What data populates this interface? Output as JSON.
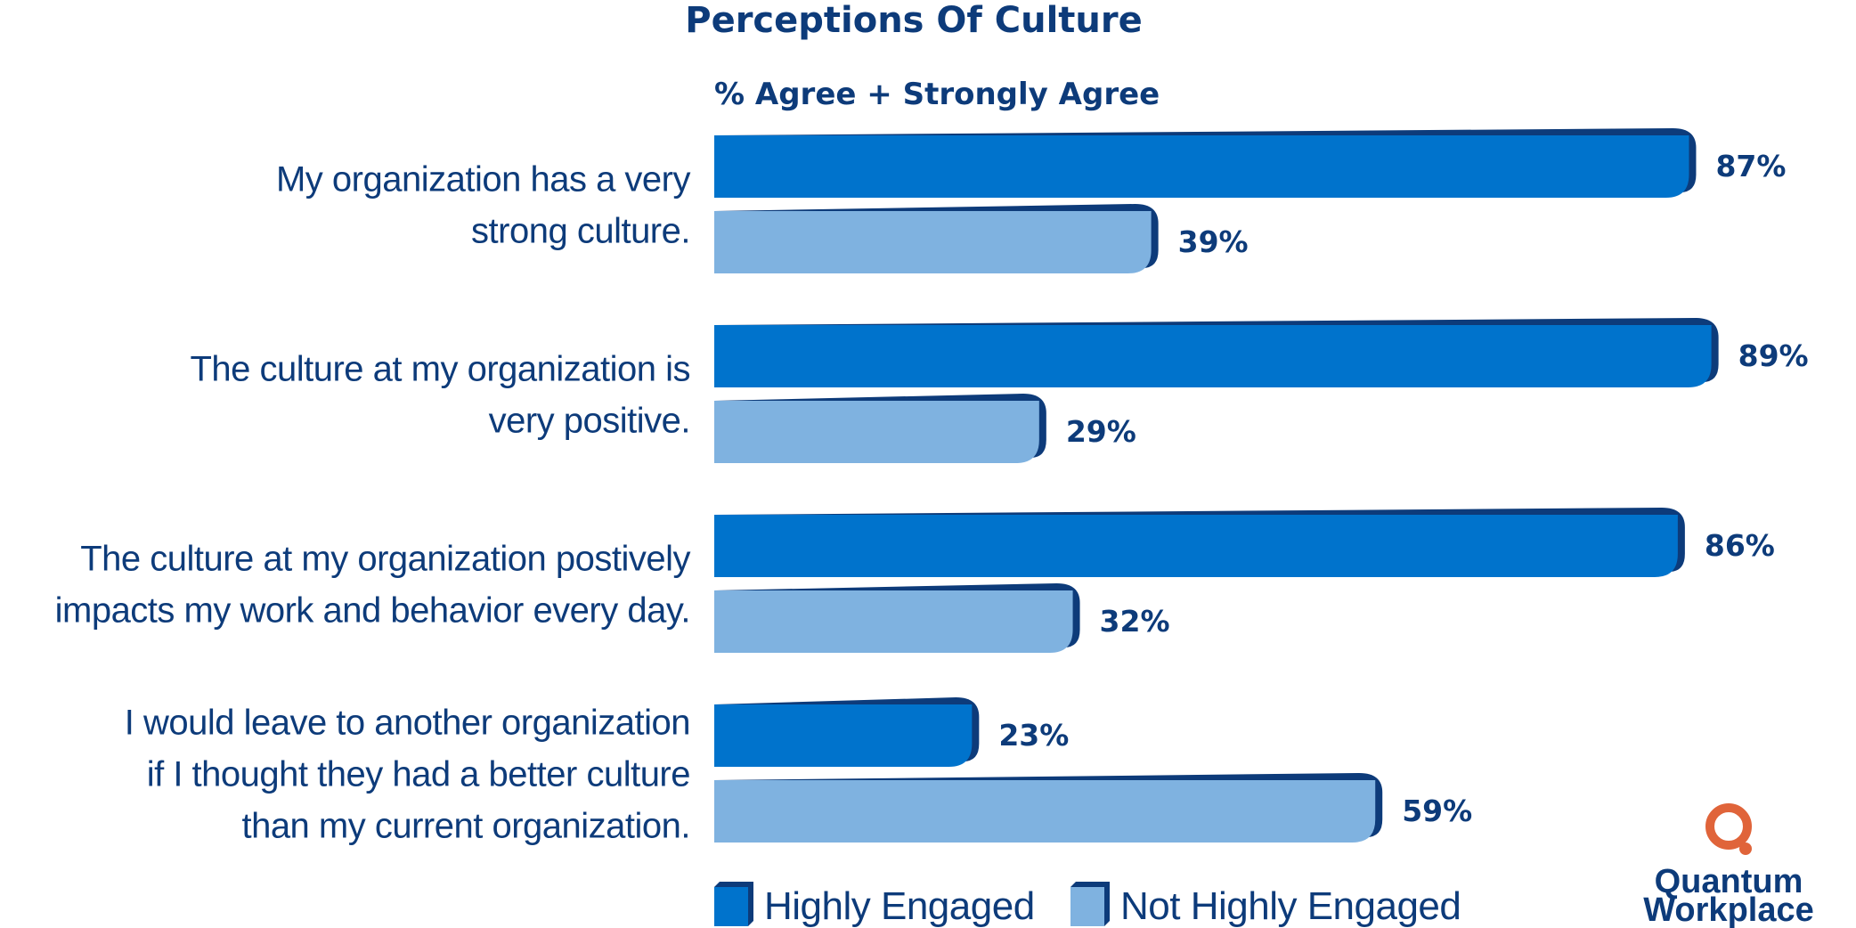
{
  "chart_data": {
    "type": "bar",
    "orientation": "horizontal",
    "title": "Perceptions Of Culture",
    "subtitle": "% Agree + Strongly Agree",
    "categories": [
      [
        "My organization has a very",
        "strong culture."
      ],
      [
        "The culture at my organization is",
        "very positive."
      ],
      [
        "The culture at my organization postively",
        "impacts my work and behavior every day."
      ],
      [
        "I would leave to another organization",
        "if I thought they had a better culture",
        "than my current organization."
      ]
    ],
    "series": [
      {
        "name": "Highly Engaged",
        "values": [
          87,
          89,
          86,
          23
        ],
        "labels": [
          "87%",
          "89%",
          "86%",
          "23%"
        ],
        "color": "#0073cc",
        "shade": "#0d3b7a"
      },
      {
        "name": "Not Highly Engaged",
        "values": [
          39,
          29,
          32,
          59
        ],
        "labels": [
          "39%",
          "29%",
          "32%",
          "59%"
        ],
        "color": "#7fb2e0",
        "shade": "#0d3b7a"
      }
    ],
    "xlim": [
      0,
      100
    ],
    "grid": false,
    "legend_position": "bottom",
    "text_color": "#0d3b7a"
  },
  "logo": {
    "line1": "Quantum",
    "line2": "Workplace",
    "ring_color": "#e0643a",
    "text_color": "#0d3b7a"
  }
}
